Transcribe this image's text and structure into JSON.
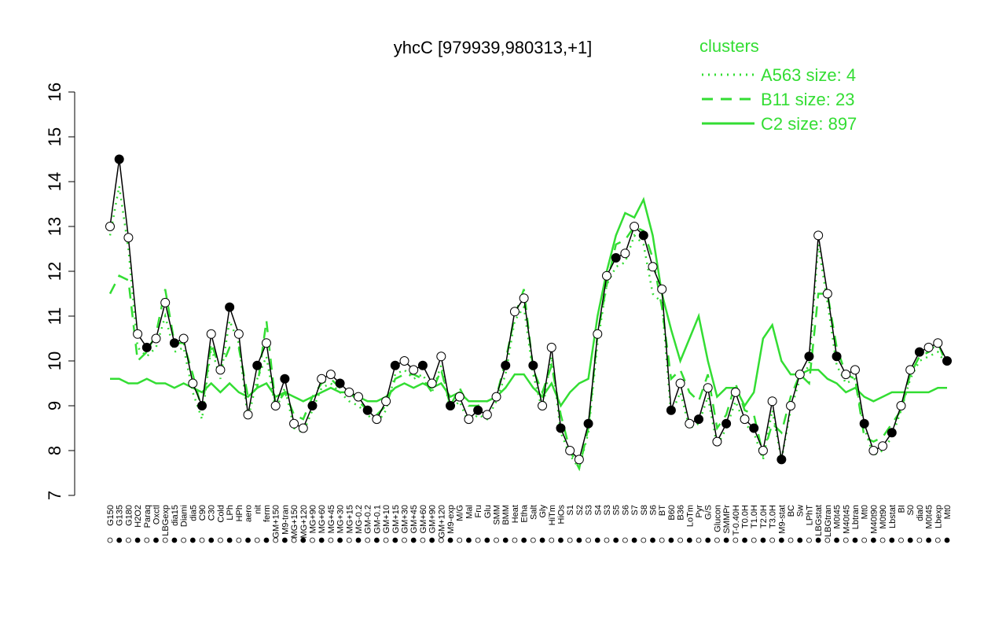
{
  "chart_data": {
    "type": "line",
    "title": "yhcC [979939,980313,+1]",
    "legend_title": "clusters",
    "ylim": [
      7,
      16
    ],
    "yticks": [
      7,
      8,
      9,
      10,
      11,
      12,
      13,
      14,
      15,
      16
    ],
    "categories": [
      "G150",
      "G135",
      "G180",
      "H2O2",
      "Paraq",
      "Oxctl",
      "LBGexp",
      "dia15",
      "Diami",
      "dia5",
      "C90",
      "C30",
      "Cold",
      "LPh",
      "HPh",
      "aero",
      "nit",
      "ferm",
      "GM+150",
      "M9-tran",
      "MG+150",
      "MG+120",
      "MG+90",
      "MG+60",
      "MG+45",
      "MG+30",
      "MG+15",
      "MG-0.2",
      "GM-0.2",
      "GM-0.1",
      "GM+10",
      "GM+15",
      "GM+30",
      "GM+45",
      "GM+60",
      "GM+90",
      "GM+120",
      "M9-exp",
      "M/G",
      "Mal",
      "Fru",
      "Glu",
      "SMM",
      "BMM",
      "Heat",
      "Etha",
      "Salt",
      "Gly",
      "HiTm",
      "HiOs",
      "S1",
      "S2",
      "S3",
      "S4",
      "S3",
      "S5",
      "S6",
      "S7",
      "S8",
      "S6",
      "BT",
      "B60",
      "B36",
      "LoTm",
      "Pyr",
      "G/S",
      "Glucon",
      "SMMPr",
      "T-0.40H",
      "T0.0H",
      "T1.0H",
      "T2.0H",
      "T3.0H",
      "M9-stat",
      "BC",
      "Sw",
      "LPhT",
      "LBGstat",
      "LBGtran",
      "M0t45",
      "M40t45",
      "Lbtran",
      "Mt0",
      "M40t90",
      "M0t90",
      "Lbstat",
      "BI",
      "S0",
      "dia0",
      "M0t45",
      "Lbexp",
      "Mt0"
    ],
    "color": "#000000",
    "values": [
      13.0,
      14.5,
      12.75,
      10.6,
      10.3,
      10.5,
      11.3,
      10.4,
      10.5,
      9.5,
      9.0,
      10.6,
      9.8,
      11.2,
      10.6,
      8.8,
      9.9,
      10.4,
      9.0,
      9.6,
      8.6,
      8.5,
      9.0,
      9.6,
      9.7,
      9.5,
      9.3,
      9.2,
      8.9,
      8.7,
      9.1,
      9.9,
      10.0,
      9.8,
      9.9,
      9.5,
      10.1,
      9.0,
      9.2,
      8.7,
      8.9,
      8.8,
      9.2,
      9.9,
      11.1,
      11.4,
      9.9,
      9.0,
      10.3,
      8.5,
      8.0,
      7.8,
      8.6,
      10.6,
      11.9,
      12.3,
      12.4,
      13.0,
      12.8,
      12.1,
      11.6,
      8.9,
      9.5,
      8.6,
      8.7,
      9.4,
      8.2,
      8.6,
      9.3,
      8.7,
      8.5,
      8.0,
      9.1,
      7.8,
      9.0,
      9.7,
      10.1,
      12.8,
      11.5,
      10.1,
      9.7,
      9.8,
      8.6,
      8.0,
      8.1,
      8.4,
      9.0,
      9.8,
      10.2,
      10.3,
      10.4,
      10.0
    ],
    "series": [
      {
        "name": "A563 size: 4",
        "color": "#33dd33",
        "style": "dotted",
        "values": [
          12.8,
          13.9,
          12.5,
          10.3,
          10.1,
          10.3,
          11.0,
          10.2,
          10.3,
          9.3,
          8.7,
          10.3,
          9.6,
          10.9,
          10.4,
          8.7,
          9.6,
          10.1,
          8.9,
          9.4,
          8.5,
          8.4,
          8.9,
          9.4,
          9.5,
          9.3,
          9.1,
          9.0,
          8.8,
          8.6,
          8.9,
          9.7,
          9.8,
          9.6,
          9.7,
          9.3,
          9.9,
          8.9,
          9.1,
          8.6,
          8.8,
          8.7,
          9.1,
          9.7,
          10.9,
          11.2,
          9.7,
          8.9,
          10.1,
          8.4,
          7.9,
          7.6,
          8.4,
          10.4,
          11.7,
          12.1,
          12.2,
          12.8,
          12.6,
          11.5,
          11.3,
          8.8,
          9.3,
          8.5,
          8.6,
          9.2,
          8.1,
          8.5,
          9.1,
          8.6,
          8.4,
          7.8,
          8.9,
          7.8,
          8.9,
          9.6,
          9.9,
          12.6,
          11.3,
          9.9,
          9.5,
          9.6,
          8.5,
          7.9,
          8.0,
          8.3,
          8.9,
          9.6,
          10.0,
          10.1,
          10.2,
          9.9
        ]
      },
      {
        "name": "B11 size: 23",
        "color": "#33dd33",
        "style": "dashed",
        "values": [
          11.5,
          11.9,
          11.8,
          10.0,
          10.2,
          10.6,
          11.6,
          10.4,
          10.4,
          9.7,
          8.9,
          10.4,
          9.8,
          10.3,
          10.3,
          9.2,
          9.4,
          10.9,
          9.0,
          9.3,
          8.8,
          8.7,
          9.2,
          9.5,
          9.6,
          9.4,
          9.3,
          9.1,
          8.9,
          8.8,
          9.0,
          9.6,
          9.7,
          9.7,
          9.6,
          9.3,
          9.8,
          9.0,
          9.4,
          9.0,
          9.0,
          9.1,
          9.2,
          10.0,
          11.0,
          11.6,
          9.8,
          9.3,
          9.9,
          8.8,
          8.0,
          7.6,
          8.5,
          10.6,
          11.7,
          12.6,
          12.7,
          13.0,
          12.9,
          12.3,
          11.2,
          9.6,
          9.8,
          9.3,
          9.1,
          9.7,
          8.5,
          8.8,
          9.5,
          8.9,
          8.8,
          7.9,
          8.6,
          8.4,
          9.2,
          9.7,
          9.5,
          11.5,
          11.5,
          10.3,
          9.7,
          9.6,
          8.3,
          8.2,
          8.3,
          8.6,
          8.9,
          9.7,
          10.1,
          10.2,
          10.4,
          9.9
        ]
      },
      {
        "name": "C2 size: 897",
        "color": "#33dd33",
        "style": "solid",
        "values": [
          9.6,
          9.6,
          9.5,
          9.5,
          9.6,
          9.5,
          9.5,
          9.4,
          9.5,
          9.4,
          9.3,
          9.5,
          9.3,
          9.5,
          9.3,
          9.2,
          9.4,
          9.5,
          9.2,
          9.3,
          9.2,
          9.1,
          9.2,
          9.3,
          9.4,
          9.3,
          9.3,
          9.2,
          9.1,
          9.1,
          9.2,
          9.4,
          9.5,
          9.4,
          9.5,
          9.4,
          9.5,
          9.2,
          9.3,
          9.1,
          9.1,
          9.1,
          9.2,
          9.4,
          9.7,
          9.7,
          9.4,
          9.2,
          9.5,
          9.0,
          9.3,
          9.5,
          9.6,
          11.0,
          12.0,
          12.8,
          13.3,
          13.2,
          13.6,
          12.8,
          11.5,
          10.7,
          10.0,
          10.5,
          11.0,
          10.0,
          9.2,
          9.4,
          9.4,
          9.0,
          9.3,
          10.5,
          10.8,
          10.0,
          9.7,
          9.7,
          9.8,
          9.8,
          9.6,
          9.5,
          9.3,
          9.4,
          9.2,
          9.1,
          9.2,
          9.3,
          9.3,
          9.3,
          9.3,
          9.3,
          9.4,
          9.4
        ]
      }
    ]
  }
}
